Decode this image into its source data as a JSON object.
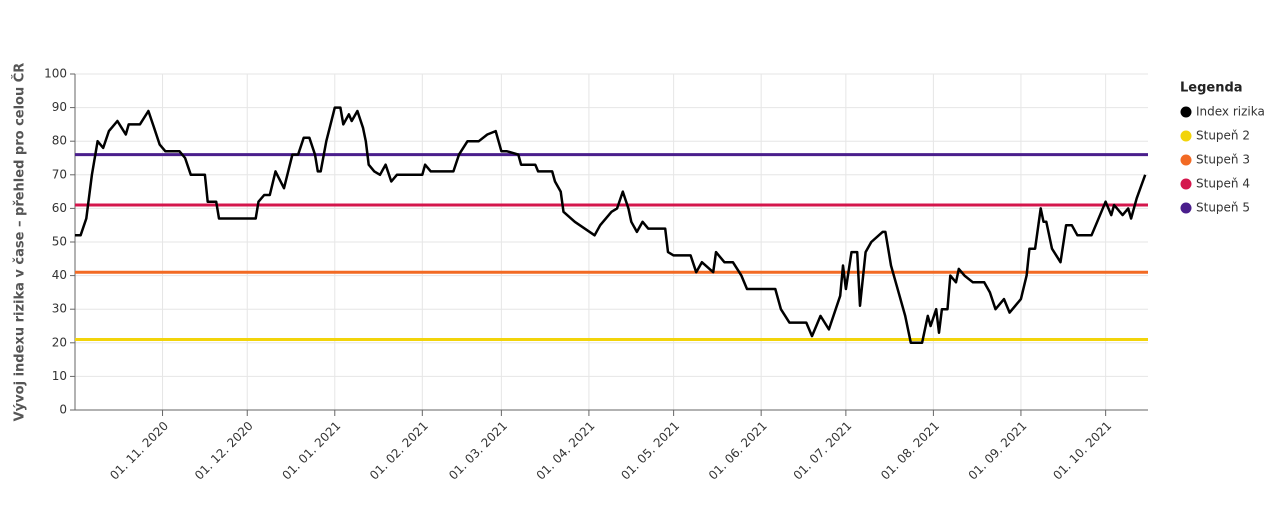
{
  "chart_data": {
    "type": "line",
    "y_label": "Vývoj indexu rizika v čase – přehled pro celou ČR",
    "legend_title": "Legenda",
    "legend": "right",
    "grid": true,
    "xlim": [
      "2020-10-01",
      "2021-10-16"
    ],
    "ylim": [
      0,
      100
    ],
    "yticks": [
      0,
      10,
      20,
      30,
      40,
      50,
      60,
      70,
      80,
      90,
      100
    ],
    "xticks": [
      {
        "value": "2020-11-01",
        "label": "01. 11. 2020"
      },
      {
        "value": "2020-12-01",
        "label": "01. 12. 2020"
      },
      {
        "value": "2021-01-01",
        "label": "01. 01. 2021"
      },
      {
        "value": "2021-02-01",
        "label": "01. 02. 2021"
      },
      {
        "value": "2021-03-01",
        "label": "01. 03. 2021"
      },
      {
        "value": "2021-04-01",
        "label": "01. 04. 2021"
      },
      {
        "value": "2021-05-01",
        "label": "01. 05. 2021"
      },
      {
        "value": "2021-06-01",
        "label": "01. 06. 2021"
      },
      {
        "value": "2021-07-01",
        "label": "01. 07. 2021"
      },
      {
        "value": "2021-08-01",
        "label": "01. 08. 2021"
      },
      {
        "value": "2021-09-01",
        "label": "01. 09. 2021"
      },
      {
        "value": "2021-10-01",
        "label": "01. 10. 2021"
      }
    ],
    "series": [
      {
        "name": "Index rizika",
        "color": "#000000",
        "x": [
          "2020-10-01",
          "2020-10-03",
          "2020-10-05",
          "2020-10-07",
          "2020-10-09",
          "2020-10-11",
          "2020-10-13",
          "2020-10-16",
          "2020-10-19",
          "2020-10-20",
          "2020-10-24",
          "2020-10-27",
          "2020-10-29",
          "2020-10-31",
          "2020-11-02",
          "2020-11-07",
          "2020-11-09",
          "2020-11-11",
          "2020-11-16",
          "2020-11-17",
          "2020-11-20",
          "2020-11-21",
          "2020-12-04",
          "2020-12-05",
          "2020-12-07",
          "2020-12-09",
          "2020-12-11",
          "2020-12-14",
          "2020-12-17",
          "2020-12-19",
          "2020-12-21",
          "2020-12-23",
          "2020-12-25",
          "2020-12-26",
          "2020-12-27",
          "2020-12-29",
          "2021-01-01",
          "2021-01-03",
          "2021-01-04",
          "2021-01-06",
          "2021-01-07",
          "2021-01-09",
          "2021-01-11",
          "2021-01-12",
          "2021-01-13",
          "2021-01-15",
          "2021-01-17",
          "2021-01-19",
          "2021-01-21",
          "2021-01-23",
          "2021-02-01",
          "2021-02-02",
          "2021-02-04",
          "2021-02-12",
          "2021-02-14",
          "2021-02-17",
          "2021-02-21",
          "2021-02-24",
          "2021-02-27",
          "2021-03-01",
          "2021-03-03",
          "2021-03-07",
          "2021-03-08",
          "2021-03-13",
          "2021-03-14",
          "2021-03-19",
          "2021-03-20",
          "2021-03-22",
          "2021-03-23",
          "2021-03-27",
          "2021-04-03",
          "2021-04-05",
          "2021-04-09",
          "2021-04-11",
          "2021-04-13",
          "2021-04-15",
          "2021-04-16",
          "2021-04-18",
          "2021-04-20",
          "2021-04-22",
          "2021-04-28",
          "2021-04-29",
          "2021-05-01",
          "2021-05-07",
          "2021-05-09",
          "2021-05-11",
          "2021-05-15",
          "2021-05-16",
          "2021-05-19",
          "2021-05-22",
          "2021-05-25",
          "2021-05-27",
          "2021-06-06",
          "2021-06-08",
          "2021-06-11",
          "2021-06-17",
          "2021-06-19",
          "2021-06-22",
          "2021-06-25",
          "2021-06-29",
          "2021-06-30",
          "2021-07-01",
          "2021-07-03",
          "2021-07-05",
          "2021-07-06",
          "2021-07-08",
          "2021-07-10",
          "2021-07-14",
          "2021-07-15",
          "2021-07-17",
          "2021-07-19",
          "2021-07-22",
          "2021-07-24",
          "2021-07-28",
          "2021-07-30",
          "2021-07-31",
          "2021-08-02",
          "2021-08-03",
          "2021-08-04",
          "2021-08-06",
          "2021-08-07",
          "2021-08-09",
          "2021-08-10",
          "2021-08-12",
          "2021-08-15",
          "2021-08-19",
          "2021-08-21",
          "2021-08-23",
          "2021-08-26",
          "2021-08-28",
          "2021-09-01",
          "2021-09-03",
          "2021-09-04",
          "2021-09-06",
          "2021-09-08",
          "2021-09-09",
          "2021-09-10",
          "2021-09-12",
          "2021-09-15",
          "2021-09-17",
          "2021-09-19",
          "2021-09-21",
          "2021-09-26",
          "2021-09-28",
          "2021-10-01",
          "2021-10-03",
          "2021-10-04",
          "2021-10-07",
          "2021-10-09",
          "2021-10-10",
          "2021-10-12",
          "2021-10-15"
        ],
        "values": [
          52,
          52,
          57,
          70,
          80,
          78,
          83,
          86,
          82,
          85,
          85,
          89,
          84,
          79,
          77,
          77,
          75,
          70,
          70,
          62,
          62,
          57,
          57,
          62,
          64,
          64,
          71,
          66,
          76,
          76,
          81,
          81,
          76,
          71,
          71,
          80,
          90,
          90,
          85,
          88,
          86,
          89,
          84,
          80,
          73,
          71,
          70,
          73,
          68,
          70,
          70,
          73,
          71,
          71,
          76,
          80,
          80,
          82,
          83,
          77,
          77,
          76,
          73,
          73,
          71,
          71,
          68,
          65,
          59,
          56,
          52,
          55,
          59,
          60,
          65,
          60,
          56,
          53,
          56,
          54,
          54,
          47,
          46,
          46,
          41,
          44,
          41,
          47,
          44,
          44,
          40,
          36,
          36,
          30,
          26,
          26,
          22,
          28,
          24,
          34,
          43,
          36,
          47,
          47,
          31,
          47,
          50,
          53,
          53,
          43,
          37,
          28,
          20,
          20,
          28,
          25,
          30,
          23,
          30,
          30,
          40,
          38,
          42,
          40,
          38,
          38,
          35,
          30,
          33,
          29,
          33,
          40,
          48,
          48,
          60,
          56,
          56,
          48,
          44,
          55,
          55,
          52,
          52,
          56,
          62,
          58,
          61,
          58,
          60,
          57,
          63,
          70
        ]
      },
      {
        "name": "Stupeň 2",
        "color": "#f2d40a",
        "value": 21
      },
      {
        "name": "Stupeň 3",
        "color": "#f26a24",
        "value": 41
      },
      {
        "name": "Stupeň 4",
        "color": "#d4164c",
        "value": 61
      },
      {
        "name": "Stupeň 5",
        "color": "#4a1e8c",
        "value": 76
      }
    ]
  }
}
